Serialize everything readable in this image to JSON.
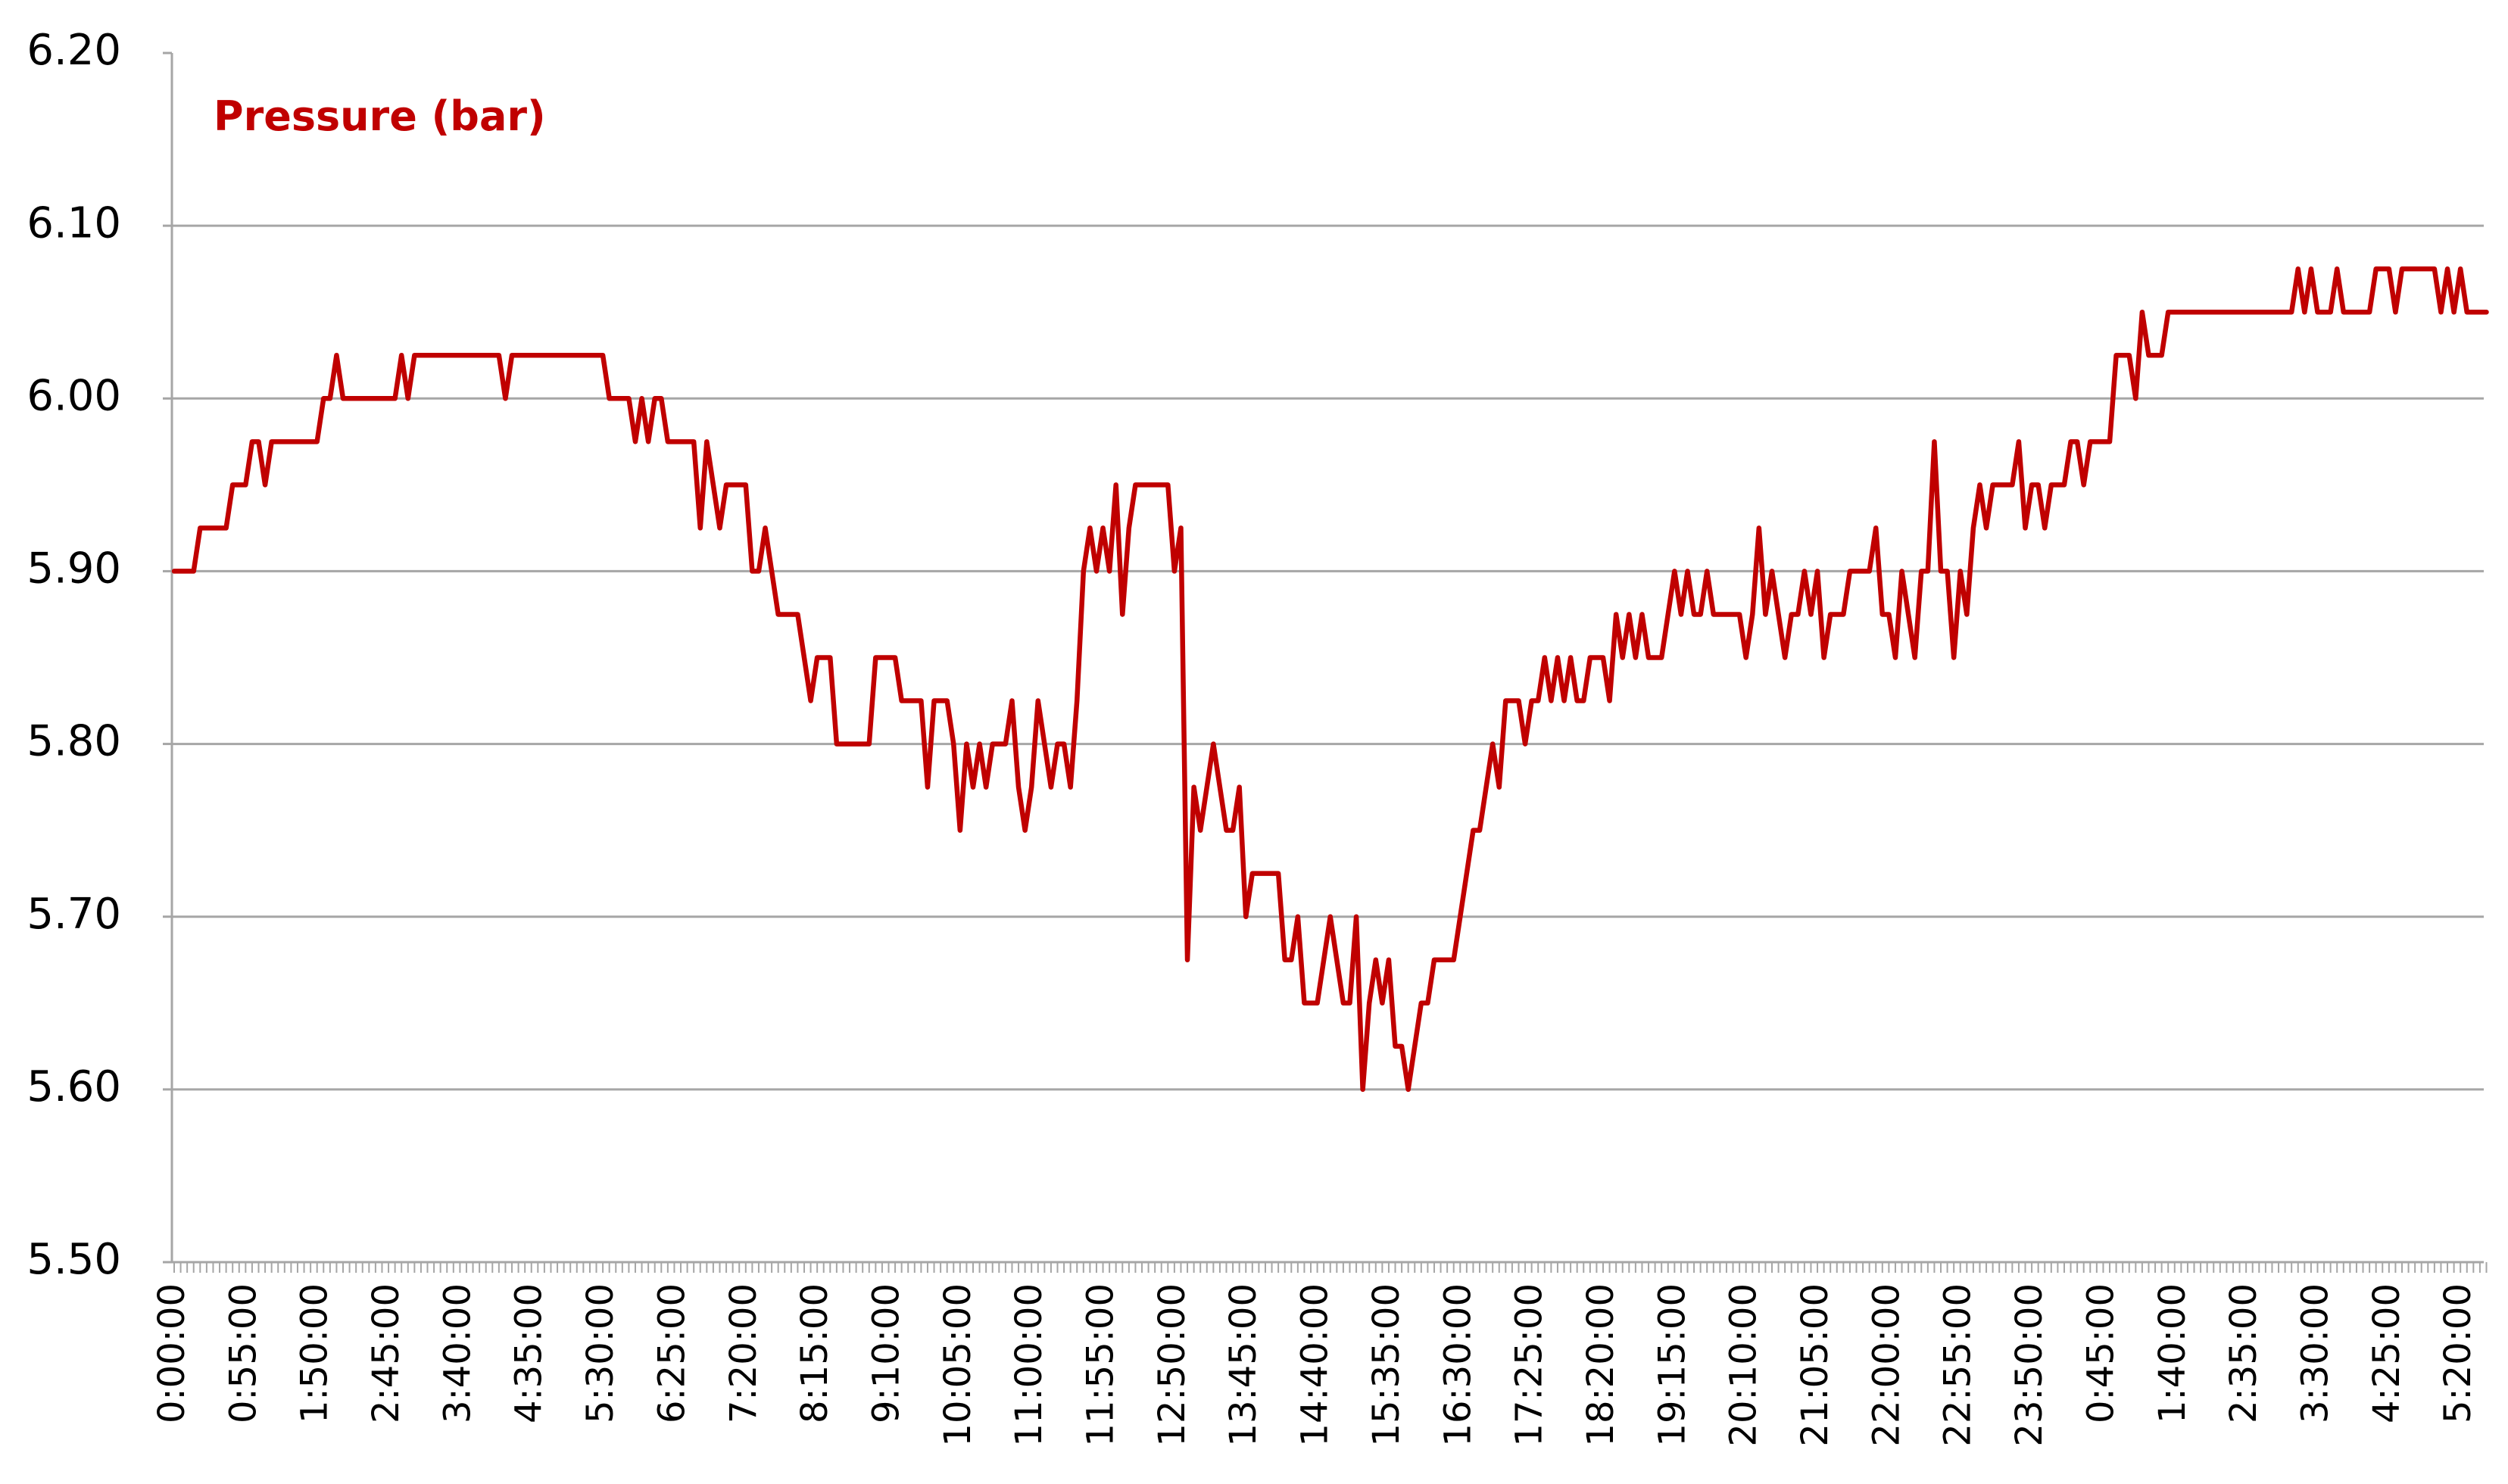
{
  "chart_data": {
    "type": "line",
    "title": "Pressure (bar)",
    "color": "#c00000",
    "grid": true,
    "ylim": [
      5.5,
      6.2
    ],
    "yticks": [
      {
        "value": 5.5,
        "label": "5.50"
      },
      {
        "value": 5.6,
        "label": "5.60"
      },
      {
        "value": 5.7,
        "label": "5.70"
      },
      {
        "value": 5.8,
        "label": "5.80"
      },
      {
        "value": 5.9,
        "label": "5.90"
      },
      {
        "value": 6.0,
        "label": "6.00"
      },
      {
        "value": 6.1,
        "label": "6.10"
      },
      {
        "value": 6.2,
        "label": "6.20"
      }
    ],
    "categories": [
      "0:00:00",
      null,
      null,
      null,
      null,
      null,
      null,
      null,
      null,
      null,
      null,
      "0:55:00",
      null,
      null,
      null,
      null,
      null,
      null,
      null,
      null,
      null,
      null,
      "1:50:00",
      null,
      null,
      null,
      null,
      null,
      null,
      null,
      null,
      null,
      null,
      "2:45:00",
      null,
      null,
      null,
      null,
      null,
      null,
      null,
      null,
      null,
      null,
      "3:40:00",
      null,
      null,
      null,
      null,
      null,
      null,
      null,
      null,
      null,
      null,
      "4:35:00",
      null,
      null,
      null,
      null,
      null,
      null,
      null,
      null,
      null,
      null,
      "5:30:00",
      null,
      null,
      null,
      null,
      null,
      null,
      null,
      null,
      null,
      null,
      "6:25:00",
      null,
      null,
      null,
      null,
      null,
      null,
      null,
      null,
      null,
      null,
      "7:20:00",
      null,
      null,
      null,
      null,
      null,
      null,
      null,
      null,
      null,
      null,
      "8:15:00",
      null,
      null,
      null,
      null,
      null,
      null,
      null,
      null,
      null,
      null,
      "9:10:00",
      null,
      null,
      null,
      null,
      null,
      null,
      null,
      null,
      null,
      null,
      "10:05:00",
      null,
      null,
      null,
      null,
      null,
      null,
      null,
      null,
      null,
      null,
      "11:00:00",
      null,
      null,
      null,
      null,
      null,
      null,
      null,
      null,
      null,
      null,
      "11:55:00",
      null,
      null,
      null,
      null,
      null,
      null,
      null,
      null,
      null,
      null,
      "12:50:00",
      null,
      null,
      null,
      null,
      null,
      null,
      null,
      null,
      null,
      null,
      "13:45:00",
      null,
      null,
      null,
      null,
      null,
      null,
      null,
      null,
      null,
      null,
      "14:40:00",
      null,
      null,
      null,
      null,
      null,
      null,
      null,
      null,
      null,
      null,
      "15:35:00",
      null,
      null,
      null,
      null,
      null,
      null,
      null,
      null,
      null,
      null,
      "16:30:00",
      null,
      null,
      null,
      null,
      null,
      null,
      null,
      null,
      null,
      null,
      "17:25:00",
      null,
      null,
      null,
      null,
      null,
      null,
      null,
      null,
      null,
      null,
      "18:20:00",
      null,
      null,
      null,
      null,
      null,
      null,
      null,
      null,
      null,
      null,
      "19:15:00",
      null,
      null,
      null,
      null,
      null,
      null,
      null,
      null,
      null,
      null,
      "20:10:00",
      null,
      null,
      null,
      null,
      null,
      null,
      null,
      null,
      null,
      null,
      "21:05:00",
      null,
      null,
      null,
      null,
      null,
      null,
      null,
      null,
      null,
      null,
      "22:00:00",
      null,
      null,
      null,
      null,
      null,
      null,
      null,
      null,
      null,
      null,
      "22:55:00",
      null,
      null,
      null,
      null,
      null,
      null,
      null,
      null,
      null,
      null,
      "23:50:00",
      null,
      null,
      null,
      null,
      null,
      null,
      null,
      null,
      null,
      null,
      "0:45:00",
      null,
      null,
      null,
      null,
      null,
      null,
      null,
      null,
      null,
      null,
      "1:40:00",
      null,
      null,
      null,
      null,
      null,
      null,
      null,
      null,
      null,
      null,
      "2:35:00",
      null,
      null,
      null,
      null,
      null,
      null,
      null,
      null,
      null,
      null,
      "3:30:00",
      null,
      null,
      null,
      null,
      null,
      null,
      null,
      null,
      null,
      null,
      "4:25:00",
      null,
      null,
      null,
      null,
      null,
      null,
      null,
      null,
      null,
      null,
      "5:20:00",
      null,
      null,
      null,
      null
    ],
    "values": [
      5.9,
      5.9,
      5.9,
      5.9,
      5.925,
      5.925,
      5.925,
      5.925,
      5.925,
      5.95,
      5.95,
      5.95,
      5.975,
      5.975,
      5.95,
      5.975,
      5.975,
      5.975,
      5.975,
      5.975,
      5.975,
      5.975,
      5.975,
      6,
      6,
      6.025,
      6,
      6,
      6,
      6,
      6,
      6,
      6,
      6,
      6,
      6.025,
      6,
      6.025,
      6.025,
      6.025,
      6.025,
      6.025,
      6.025,
      6.025,
      6.025,
      6.025,
      6.025,
      6.025,
      6.025,
      6.025,
      6.025,
      6,
      6.025,
      6.025,
      6.025,
      6.025,
      6.025,
      6.025,
      6.025,
      6.025,
      6.025,
      6.025,
      6.025,
      6.025,
      6.025,
      6.025,
      6.025,
      6,
      6,
      6,
      6,
      5.975,
      6,
      5.975,
      6,
      6,
      5.975,
      5.975,
      5.975,
      5.975,
      5.975,
      5.925,
      5.975,
      5.95,
      5.925,
      5.95,
      5.95,
      5.95,
      5.95,
      5.9,
      5.9,
      5.925,
      5.9,
      5.875,
      5.875,
      5.875,
      5.875,
      5.85,
      5.825,
      5.85,
      5.85,
      5.85,
      5.8,
      5.8,
      5.8,
      5.8,
      5.8,
      5.8,
      5.85,
      5.85,
      5.85,
      5.85,
      5.825,
      5.825,
      5.825,
      5.825,
      5.775,
      5.825,
      5.825,
      5.825,
      5.8,
      5.75,
      5.8,
      5.775,
      5.8,
      5.775,
      5.8,
      5.8,
      5.8,
      5.825,
      5.775,
      5.75,
      5.775,
      5.825,
      5.8,
      5.775,
      5.8,
      5.8,
      5.775,
      5.825,
      5.9,
      5.925,
      5.9,
      5.925,
      5.9,
      5.95,
      5.875,
      5.925,
      5.95,
      5.95,
      5.95,
      5.95,
      5.95,
      5.95,
      5.9,
      5.925,
      5.675,
      5.775,
      5.75,
      5.775,
      5.8,
      5.775,
      5.75,
      5.75,
      5.775,
      5.7,
      5.725,
      5.725,
      5.725,
      5.725,
      5.725,
      5.675,
      5.675,
      5.7,
      5.65,
      5.65,
      5.65,
      5.675,
      5.7,
      5.675,
      5.65,
      5.65,
      5.7,
      5.6,
      5.65,
      5.675,
      5.65,
      5.675,
      5.625,
      5.625,
      5.6,
      5.625,
      5.65,
      5.65,
      5.675,
      5.675,
      5.675,
      5.675,
      5.7,
      5.725,
      5.75,
      5.75,
      5.775,
      5.8,
      5.775,
      5.825,
      5.825,
      5.825,
      5.8,
      5.825,
      5.825,
      5.85,
      5.825,
      5.85,
      5.825,
      5.85,
      5.825,
      5.825,
      5.85,
      5.85,
      5.85,
      5.825,
      5.875,
      5.85,
      5.875,
      5.85,
      5.875,
      5.85,
      5.85,
      5.85,
      5.875,
      5.9,
      5.875,
      5.9,
      5.875,
      5.875,
      5.9,
      5.875,
      5.875,
      5.875,
      5.875,
      5.875,
      5.85,
      5.875,
      5.925,
      5.875,
      5.9,
      5.875,
      5.85,
      5.875,
      5.875,
      5.9,
      5.875,
      5.9,
      5.85,
      5.875,
      5.875,
      5.875,
      5.9,
      5.9,
      5.9,
      5.9,
      5.925,
      5.875,
      5.875,
      5.85,
      5.9,
      5.875,
      5.85,
      5.9,
      5.9,
      5.975,
      5.9,
      5.9,
      5.85,
      5.9,
      5.875,
      5.925,
      5.95,
      5.925,
      5.95,
      5.95,
      5.95,
      5.95,
      5.975,
      5.925,
      5.95,
      5.95,
      5.925,
      5.95,
      5.95,
      5.95,
      5.975,
      5.975,
      5.95,
      5.975,
      5.975,
      5.975,
      5.975,
      6.025,
      6.025,
      6.025,
      6,
      6.05,
      6.025,
      6.025,
      6.025,
      6.05,
      6.05,
      6.05,
      6.05,
      6.05,
      6.05,
      6.05,
      6.05,
      6.05,
      6.05,
      6.05,
      6.05,
      6.05,
      6.05,
      6.05,
      6.05,
      6.05,
      6.05,
      6.05,
      6.05,
      6.075,
      6.05,
      6.075,
      6.05,
      6.05,
      6.05,
      6.075,
      6.05,
      6.05,
      6.05,
      6.05,
      6.05,
      6.075,
      6.075,
      6.075,
      6.05,
      6.075,
      6.075,
      6.075,
      6.075,
      6.075,
      6.075,
      6.05,
      6.075,
      6.05,
      6.075,
      6.05,
      6.05,
      6.05,
      6.05
    ]
  }
}
